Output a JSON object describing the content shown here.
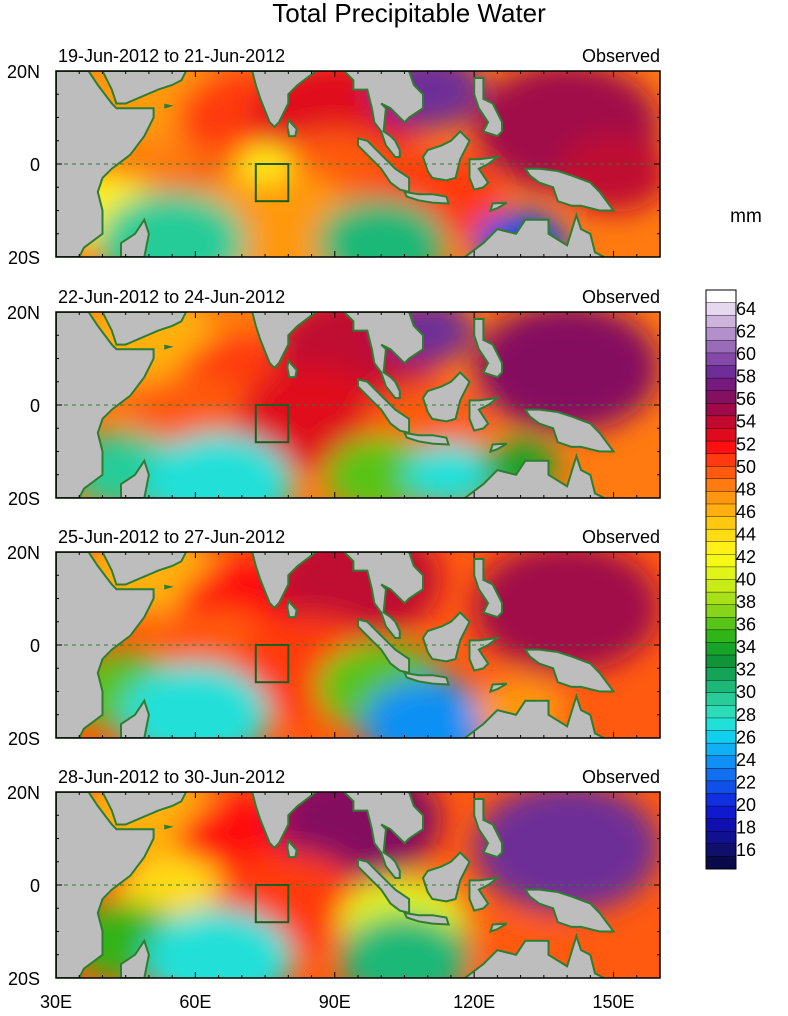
{
  "figure": {
    "title": "Total Precipitable Water",
    "units": "mm"
  },
  "panels": [
    {
      "date_range": "19-Jun-2012 to 21-Jun-2012",
      "status": "Observed"
    },
    {
      "date_range": "22-Jun-2012 to 24-Jun-2012",
      "status": "Observed"
    },
    {
      "date_range": "25-Jun-2012 to 27-Jun-2012",
      "status": "Observed"
    },
    {
      "date_range": "28-Jun-2012 to 30-Jun-2012",
      "status": "Observed"
    }
  ],
  "lat_labels": [
    "20N",
    "0",
    "20S"
  ],
  "lon_labels": [
    "30E",
    "60E",
    "90E",
    "120E",
    "150E"
  ],
  "colorbar": {
    "labels": [
      "64",
      "62",
      "60",
      "58",
      "56",
      "54",
      "52",
      "50",
      "48",
      "46",
      "44",
      "42",
      "40",
      "38",
      "36",
      "34",
      "32",
      "30",
      "28",
      "26",
      "24",
      "22",
      "20",
      "18",
      "16"
    ],
    "colors": [
      "#ffffff",
      "#e6d8ee",
      "#cdb4dc",
      "#b38fcb",
      "#9a6bb9",
      "#8448a8",
      "#6e2d97",
      "#761a80",
      "#850f60",
      "#a00a48",
      "#c00a30",
      "#e00a1e",
      "#ff1010",
      "#ff3a10",
      "#ff5a10",
      "#ff7a10",
      "#ff9810",
      "#ffb010",
      "#ffc810",
      "#ffdc14",
      "#fff018",
      "#f6f818",
      "#e0f418",
      "#c8ec18",
      "#a8e018",
      "#88d418",
      "#58c418",
      "#30b418",
      "#18a428",
      "#109438",
      "#14a458",
      "#1cb878",
      "#28cc98",
      "#2cdcb8",
      "#20e0d8",
      "#10d0f0",
      "#10b0f4",
      "#1090f4",
      "#1070f0",
      "#1050e8",
      "#1030e0",
      "#1018d0",
      "#1010b0",
      "#101090",
      "#10106c",
      "#0a0a4a"
    ]
  },
  "map_region": {
    "lon_min": 30,
    "lon_max": 160,
    "lat_min": -20,
    "lat_max": 20
  },
  "box_region": {
    "lon_min": 73,
    "lon_max": 80,
    "lat_min": -8,
    "lat_max": 0
  }
}
